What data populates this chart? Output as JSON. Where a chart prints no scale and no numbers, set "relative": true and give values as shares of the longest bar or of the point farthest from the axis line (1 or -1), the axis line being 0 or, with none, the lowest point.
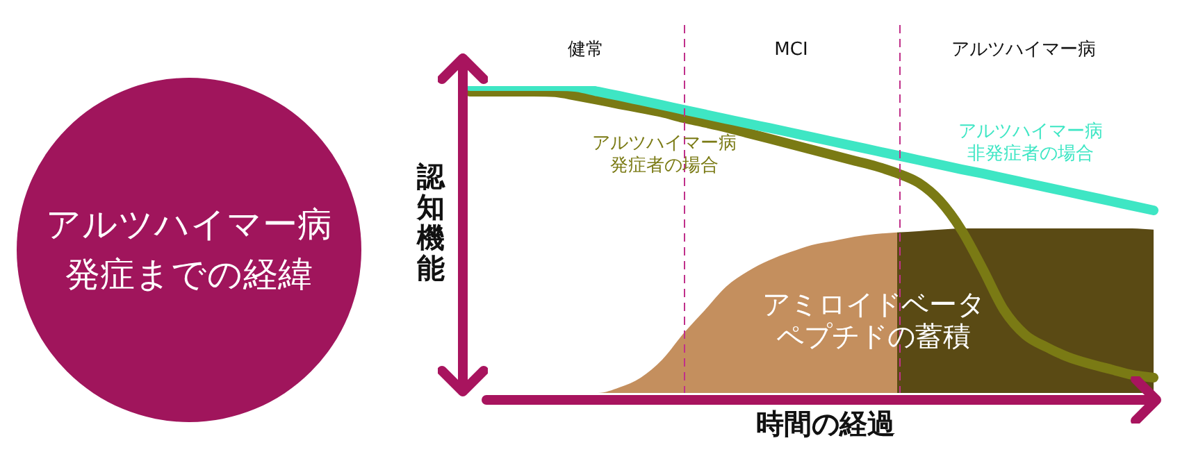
{
  "chart_data": {
    "type": "line",
    "title": "アルツハイマー病発症までの経緯",
    "xlabel": "時間の経過",
    "ylabel": "認知機能",
    "relative": true,
    "legend": false,
    "grid": false,
    "marker": "none",
    "annotations": [
      "健常",
      "MCI",
      "アルツハイマー病"
    ],
    "categories": [
      null,
      null,
      null,
      null,
      null,
      null,
      null,
      null,
      null,
      null,
      null,
      null,
      null,
      null,
      null,
      null,
      null,
      null,
      null,
      null,
      null,
      null,
      null,
      null,
      null,
      null,
      null,
      null,
      null,
      null,
      null,
      null,
      null
    ],
    "series": [
      {
        "type": "area",
        "name": "アミロイドベータペプチドの蓄積",
        "color": "#c48f5e",
        "values": [
          0,
          0,
          0,
          0,
          0,
          0,
          0,
          0.018,
          0.05,
          0.108,
          0.194,
          0.27,
          0.347,
          0.396,
          0.432,
          0.459,
          0.482,
          0.495,
          0.509,
          0.518,
          0.523,
          null,
          null,
          null,
          null,
          null,
          null,
          null,
          null,
          null,
          null,
          null,
          null
        ]
      },
      {
        "type": "area",
        "color": "#5a4a14",
        "values": [
          null,
          null,
          null,
          null,
          null,
          null,
          null,
          null,
          null,
          null,
          null,
          null,
          null,
          null,
          null,
          null,
          null,
          null,
          null,
          null,
          0.523,
          0.527,
          0.532,
          0.536,
          0.536,
          0.536,
          0.536,
          0.536,
          0.536,
          0.536,
          0.536,
          0.536,
          0.532
        ]
      },
      {
        "name": "アルツハイマー病発症者の場合",
        "color": "#7a7a14",
        "values": [
          0.982,
          0.982,
          0.982,
          0.982,
          0.98,
          0.968,
          0.955,
          0.941,
          0.928,
          0.914,
          0.896,
          0.881,
          0.865,
          0.847,
          0.829,
          0.811,
          0.793,
          0.775,
          0.757,
          0.739,
          0.716,
          0.685,
          0.626,
          0.532,
          0.405,
          0.27,
          0.189,
          0.149,
          0.117,
          0.095,
          0.077,
          0.059,
          0.05
        ]
      },
      {
        "name": "アルツハイマー病非発症者の場合",
        "color": "#3ee6c4",
        "values": [
          1,
          1,
          1,
          1,
          1,
          0.997,
          0.982,
          0.968,
          0.953,
          0.938,
          0.923,
          0.908,
          0.893,
          0.878,
          0.864,
          0.849,
          0.834,
          0.819,
          0.804,
          0.789,
          0.774,
          0.759,
          0.744,
          0.729,
          0.715,
          0.7,
          0.685,
          0.67,
          0.655,
          0.64,
          0.625,
          0.61,
          0.595
        ]
      }
    ]
  }
}
